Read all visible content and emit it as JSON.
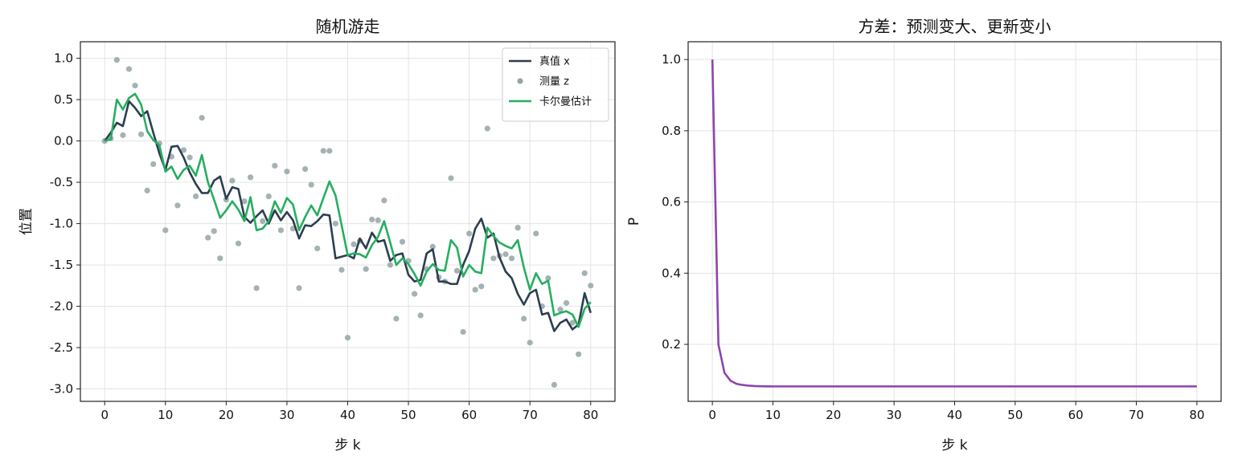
{
  "chart_data": [
    {
      "type": "line",
      "title": "随机游走",
      "xlabel": "步 k",
      "ylabel": "位置",
      "xlim": [
        -4,
        84
      ],
      "ylim": [
        -3.15,
        1.2
      ],
      "xticks": [
        0,
        10,
        20,
        30,
        40,
        50,
        60,
        70,
        80
      ],
      "yticks": [
        1.0,
        0.5,
        0.0,
        -0.5,
        -1.0,
        -1.5,
        -2.0,
        -2.5,
        -3.0
      ],
      "ytick_labels": [
        "1.0",
        "0.5",
        "0.0",
        "-0.5",
        "-1.0",
        "-1.5",
        "-2.0",
        "-2.5",
        "-3.0"
      ],
      "grid": true,
      "legend": "top-right",
      "series": [
        {
          "name": "真值 x",
          "kind": "line",
          "color": "#2c3e50",
          "x": [
            0,
            1,
            2,
            3,
            4,
            5,
            6,
            7,
            8,
            9,
            10,
            11,
            12,
            13,
            14,
            15,
            16,
            17,
            18,
            19,
            20,
            21,
            22,
            23,
            24,
            25,
            26,
            27,
            28,
            29,
            30,
            31,
            32,
            33,
            34,
            35,
            36,
            37,
            38,
            39,
            40,
            41,
            42,
            43,
            44,
            45,
            46,
            47,
            48,
            49,
            50,
            51,
            52,
            53,
            54,
            55,
            56,
            57,
            58,
            59,
            60,
            61,
            62,
            63,
            64,
            65,
            66,
            67,
            68,
            69,
            70,
            71,
            72,
            73,
            74,
            75,
            76,
            77,
            78,
            79,
            80
          ],
          "y": [
            0.0,
            0.1,
            0.22,
            0.18,
            0.48,
            0.4,
            0.3,
            0.36,
            0.1,
            -0.15,
            -0.35,
            -0.07,
            -0.06,
            -0.2,
            -0.38,
            -0.52,
            -0.63,
            -0.63,
            -0.48,
            -0.43,
            -0.7,
            -0.56,
            -0.58,
            -0.92,
            -0.99,
            -0.91,
            -0.84,
            -1.0,
            -0.84,
            -0.96,
            -0.86,
            -0.96,
            -1.18,
            -1.02,
            -1.03,
            -0.97,
            -0.89,
            -0.9,
            -1.42,
            -1.4,
            -1.38,
            -1.42,
            -1.18,
            -1.3,
            -1.11,
            -1.22,
            -1.2,
            -1.45,
            -1.38,
            -1.36,
            -1.62,
            -1.7,
            -1.68,
            -1.36,
            -1.31,
            -1.7,
            -1.7,
            -1.73,
            -1.73,
            -1.5,
            -1.33,
            -1.06,
            -0.94,
            -1.17,
            -1.12,
            -1.41,
            -1.58,
            -1.66,
            -1.85,
            -1.98,
            -1.84,
            -1.8,
            -2.1,
            -2.08,
            -2.3,
            -2.2,
            -2.16,
            -2.28,
            -2.22,
            -1.84,
            -2.08
          ]
        },
        {
          "name": "测量 z",
          "kind": "scatter",
          "color": "#95a5a6",
          "x": [
            0,
            1,
            2,
            3,
            4,
            5,
            6,
            7,
            8,
            9,
            10,
            11,
            12,
            13,
            14,
            15,
            16,
            17,
            18,
            19,
            20,
            21,
            22,
            23,
            24,
            25,
            26,
            27,
            28,
            29,
            30,
            31,
            32,
            33,
            34,
            35,
            36,
            37,
            38,
            39,
            40,
            41,
            42,
            43,
            44,
            45,
            46,
            47,
            48,
            49,
            50,
            51,
            52,
            53,
            54,
            55,
            56,
            57,
            58,
            59,
            60,
            61,
            62,
            63,
            64,
            65,
            66,
            67,
            68,
            69,
            70,
            71,
            72,
            73,
            74,
            75,
            76,
            77,
            78,
            79,
            80
          ],
          "y": [
            0.0,
            0.03,
            0.98,
            0.07,
            0.87,
            0.67,
            0.08,
            -0.6,
            -0.28,
            -0.03,
            -1.08,
            -0.19,
            -0.78,
            -0.11,
            -0.2,
            -0.67,
            0.28,
            -1.17,
            -1.09,
            -1.42,
            -0.71,
            -0.48,
            -1.24,
            -0.73,
            -0.44,
            -1.78,
            -0.97,
            -0.67,
            -0.3,
            -1.08,
            -0.37,
            -1.06,
            -1.78,
            -0.34,
            -0.53,
            -1.3,
            -0.12,
            -0.12,
            -1.0,
            -1.56,
            -2.38,
            -1.25,
            -1.21,
            -1.55,
            -0.95,
            -0.96,
            -0.72,
            -1.5,
            -2.15,
            -1.22,
            -1.45,
            -1.85,
            -2.11,
            -1.55,
            -1.28,
            -1.65,
            -1.7,
            -0.45,
            -1.57,
            -2.31,
            -1.12,
            -1.8,
            -1.76,
            0.15,
            -1.42,
            -1.39,
            -1.37,
            -1.42,
            -1.05,
            -2.15,
            -2.44,
            -1.12,
            -2.0,
            -1.66,
            -2.95,
            -2.04,
            -1.96,
            -2.2,
            -2.58,
            -1.6,
            -1.75
          ]
        },
        {
          "name": "卡尔曼估计",
          "kind": "line",
          "color": "#27ae60",
          "x": [
            0,
            1,
            2,
            3,
            4,
            5,
            6,
            7,
            8,
            9,
            10,
            11,
            12,
            13,
            14,
            15,
            16,
            17,
            18,
            19,
            20,
            21,
            22,
            23,
            24,
            25,
            26,
            27,
            28,
            29,
            30,
            31,
            32,
            33,
            34,
            35,
            36,
            37,
            38,
            39,
            40,
            41,
            42,
            43,
            44,
            45,
            46,
            47,
            48,
            49,
            50,
            51,
            52,
            53,
            54,
            55,
            56,
            57,
            58,
            59,
            60,
            61,
            62,
            63,
            64,
            65,
            66,
            67,
            68,
            69,
            70,
            71,
            72,
            73,
            74,
            75,
            76,
            77,
            78,
            79,
            80
          ],
          "y": [
            0.0,
            0.02,
            0.5,
            0.38,
            0.52,
            0.57,
            0.44,
            0.12,
            0.01,
            -0.05,
            -0.37,
            -0.31,
            -0.46,
            -0.35,
            -0.3,
            -0.42,
            -0.17,
            -0.5,
            -0.71,
            -0.93,
            -0.84,
            -0.73,
            -0.83,
            -0.97,
            -0.68,
            -1.08,
            -1.06,
            -0.97,
            -0.73,
            -0.87,
            -0.69,
            -0.77,
            -1.08,
            -0.92,
            -0.78,
            -0.9,
            -0.69,
            -0.49,
            -0.66,
            -1.02,
            -1.38,
            -1.36,
            -1.37,
            -1.41,
            -1.26,
            -1.16,
            -0.97,
            -1.23,
            -1.5,
            -1.42,
            -1.49,
            -1.61,
            -1.75,
            -1.58,
            -1.49,
            -1.56,
            -1.57,
            -1.2,
            -1.29,
            -1.64,
            -1.5,
            -1.58,
            -1.6,
            -1.05,
            -1.15,
            -1.23,
            -1.27,
            -1.3,
            -1.2,
            -1.53,
            -1.8,
            -1.6,
            -1.73,
            -1.69,
            -2.11,
            -2.08,
            -2.06,
            -2.1,
            -2.25,
            -2.03,
            -1.95
          ]
        }
      ]
    },
    {
      "type": "line",
      "title": "方差：预测变大、更新变小",
      "xlabel": "步 k",
      "ylabel": "P",
      "xlim": [
        -4,
        84
      ],
      "ylim": [
        0.04,
        1.05
      ],
      "xticks": [
        0,
        10,
        20,
        30,
        40,
        50,
        60,
        70,
        80
      ],
      "yticks": [
        1.0,
        0.8,
        0.6,
        0.4,
        0.2
      ],
      "ytick_labels": [
        "1.0",
        "0.8",
        "0.6",
        "0.4",
        "0.2"
      ],
      "grid": true,
      "series": [
        {
          "kind": "line",
          "color": "#8e44ad",
          "x": [
            0,
            1,
            2,
            3,
            4,
            5,
            6,
            7,
            8,
            9,
            10,
            11,
            12,
            13,
            14,
            15,
            16,
            17,
            18,
            19,
            20,
            21,
            22,
            23,
            24,
            25,
            26,
            27,
            28,
            29,
            30,
            31,
            32,
            33,
            34,
            35,
            36,
            37,
            38,
            39,
            40,
            41,
            42,
            43,
            44,
            45,
            46,
            47,
            48,
            49,
            50,
            51,
            52,
            53,
            54,
            55,
            56,
            57,
            58,
            59,
            60,
            61,
            62,
            63,
            64,
            65,
            66,
            67,
            68,
            69,
            70,
            71,
            72,
            73,
            74,
            75,
            76,
            77,
            78,
            79,
            80
          ],
          "y": [
            1.0,
            0.2,
            0.12,
            0.098,
            0.089,
            0.086,
            0.084,
            0.083,
            0.0825,
            0.0822,
            0.082,
            0.082,
            0.082,
            0.082,
            0.082,
            0.082,
            0.082,
            0.082,
            0.082,
            0.082,
            0.082,
            0.082,
            0.082,
            0.082,
            0.082,
            0.082,
            0.082,
            0.082,
            0.082,
            0.082,
            0.082,
            0.082,
            0.082,
            0.082,
            0.082,
            0.082,
            0.082,
            0.082,
            0.082,
            0.082,
            0.082,
            0.082,
            0.082,
            0.082,
            0.082,
            0.082,
            0.082,
            0.082,
            0.082,
            0.082,
            0.082,
            0.082,
            0.082,
            0.082,
            0.082,
            0.082,
            0.082,
            0.082,
            0.082,
            0.082,
            0.082,
            0.082,
            0.082,
            0.082,
            0.082,
            0.082,
            0.082,
            0.082,
            0.082,
            0.082,
            0.082,
            0.082,
            0.082,
            0.082,
            0.082,
            0.082,
            0.082,
            0.082,
            0.082,
            0.082,
            0.082
          ]
        }
      ]
    }
  ]
}
